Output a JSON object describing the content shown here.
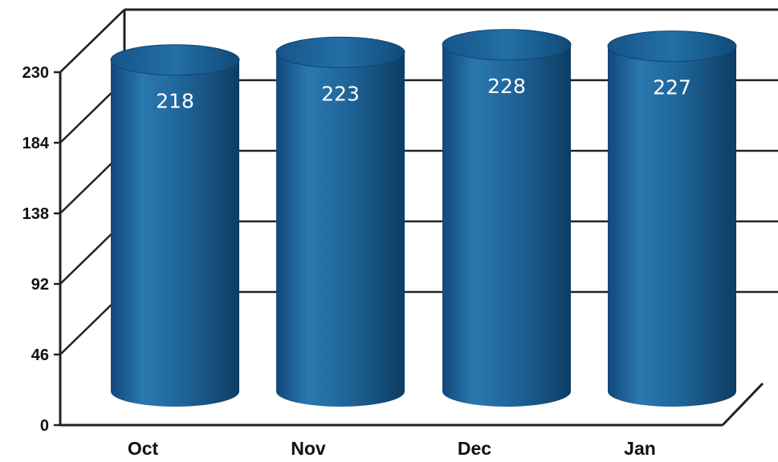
{
  "chart_data": {
    "type": "bar",
    "style": "3d-cylinder",
    "categories": [
      "Oct",
      "Nov",
      "Dec",
      "Jan"
    ],
    "values": [
      218,
      223,
      228,
      227
    ],
    "data_labels": [
      "218",
      "223",
      "228",
      "227"
    ],
    "ylim": [
      0,
      230
    ],
    "yticks": [
      "0",
      "46",
      "92",
      "138",
      "184",
      "230"
    ],
    "ytick_values": [
      0,
      46,
      92,
      138,
      184,
      230
    ],
    "grid": true,
    "legend": "none",
    "bar_color": "#1b5d8f",
    "bar_highlight": "#2c7bb4",
    "bar_shadow": "#0e3f66",
    "title": "",
    "xlabel": "",
    "ylabel": ""
  }
}
